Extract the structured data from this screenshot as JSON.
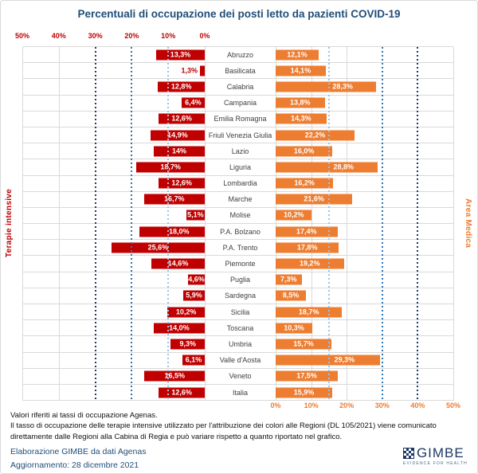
{
  "colors": {
    "red_bar": "#C00000",
    "orange_bar": "#ED7D31",
    "title_blue": "#1F4E79",
    "footer_blue": "#1F4E79",
    "logo_navy": "#1F3864",
    "grid": "#D9D9D9",
    "region_text": "#404040",
    "threshold_light": "#9DC3E6",
    "threshold_mid": "#2E75B6",
    "threshold_dark": "#1F3864"
  },
  "chart_data": {
    "type": "bar",
    "subtype": "diverging-horizontal",
    "title": "Percentuali di occupazione dei posti letto da pazienti COVID-19",
    "axis_max": 50,
    "grid": true,
    "categories": [
      "Abruzzo",
      "Basilicata",
      "Calabria",
      "Campania",
      "Emilia Romagna",
      "Friuli Venezia Giulia",
      "Lazio",
      "Liguria",
      "Lombardia",
      "Marche",
      "Molise",
      "P.A. Bolzano",
      "P.A. Trento",
      "Piemonte",
      "Puglia",
      "Sardegna",
      "Sicilia",
      "Toscana",
      "Umbria",
      "Valle d'Aosta",
      "Veneto",
      "Italia"
    ],
    "series": [
      {
        "name": "Terapie intensive",
        "side": "left",
        "color": "#C00000",
        "values": [
          13.3,
          1.3,
          12.8,
          6.4,
          12.6,
          14.9,
          14,
          18.7,
          12.6,
          16.7,
          5.1,
          18.0,
          25.6,
          14.6,
          4.6,
          5.9,
          10.2,
          14.0,
          9.3,
          6.1,
          16.5,
          12.6
        ],
        "labels": [
          "13,3%",
          "1,3%",
          "12,8%",
          "6,4%",
          "12,6%",
          "14,9%",
          "14%",
          "18,7%",
          "12,6%",
          "16,7%",
          "5,1%",
          "18,0%",
          "25,6%",
          "14,6%",
          "4,6%",
          "5,9%",
          "10,2%",
          "14,0%",
          "9,3%",
          "6,1%",
          "16,5%",
          "12,6%"
        ],
        "label_outside_indices": [
          1
        ],
        "label_dx": {
          "11": 9
        },
        "tick_values": [
          50,
          40,
          30,
          20,
          10,
          0
        ],
        "tick_labels": [
          "50%",
          "40%",
          "30%",
          "20%",
          "10%",
          "0%"
        ],
        "solid_gridline_values": [
          50,
          40,
          0
        ],
        "thresholds": [
          {
            "value": 10,
            "level": "light"
          },
          {
            "value": 20,
            "level": "mid"
          },
          {
            "value": 30,
            "level": "dark"
          }
        ]
      },
      {
        "name": "Area Medica",
        "side": "right",
        "color": "#ED7D31",
        "values": [
          12.1,
          14.1,
          28.3,
          13.8,
          14.3,
          22.2,
          16.0,
          28.8,
          16.2,
          21.6,
          10.2,
          17.4,
          17.8,
          19.2,
          7.3,
          8.5,
          18.7,
          10.3,
          15.7,
          29.3,
          17.5,
          15.9
        ],
        "labels": [
          "12,1%",
          "14,1%",
          "28,3%",
          "13,8%",
          "14,3%",
          "22,2%",
          "16,0%",
          "28,8%",
          "16,2%",
          "21,6%",
          "10,2%",
          "17,4%",
          "17,8%",
          "19,2%",
          "7,3%",
          "8,5%",
          "18,7%",
          "10,3%",
          "15,7%",
          "29,3%",
          "17,5%",
          "15,9%"
        ],
        "label_outside_indices": [],
        "label_dx": {
          "2": 21,
          "7": 21,
          "19": 21
        },
        "tick_values": [
          0,
          10,
          20,
          30,
          40,
          50
        ],
        "tick_labels": [
          "0%",
          "10%",
          "20%",
          "30%",
          "40%",
          "50%"
        ],
        "solid_gridline_values": [
          0,
          10,
          20,
          50
        ],
        "thresholds": [
          {
            "value": 15,
            "level": "light"
          },
          {
            "value": 30,
            "level": "mid"
          },
          {
            "value": 40,
            "level": "dark"
          }
        ]
      }
    ]
  },
  "footer": {
    "note1": "Valori riferiti ai tassi di occupazione Agenas.",
    "note2": "Il tasso di occupazione delle terapie intensive utilizzato per l'attribuzione dei colori alle Regioni (DL 105/2021) viene comunicato direttamente dalle Regioni alla Cabina di Regia e può variare rispetto a quanto riportato nel grafico.",
    "source": "Elaborazione GIMBE da dati Agenas",
    "updated": "Aggiornamento: 28 dicembre 2021"
  },
  "logo": {
    "text": "GIMBE",
    "tagline": "EVIDENCE FOR HEALTH"
  }
}
